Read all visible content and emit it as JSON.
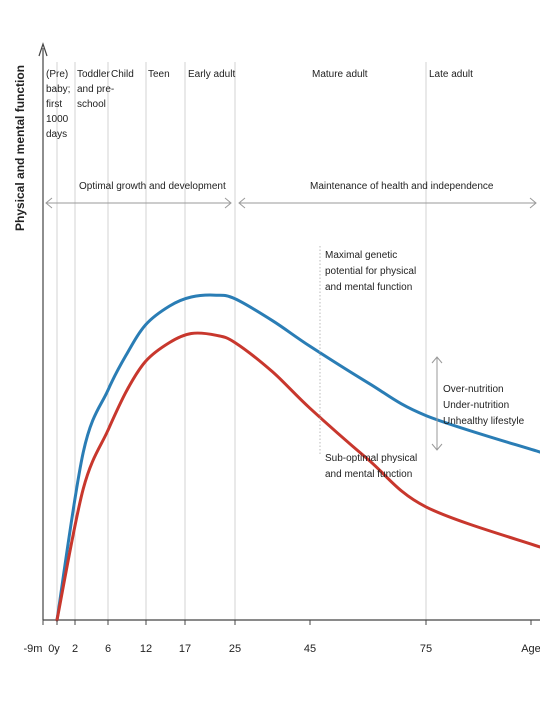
{
  "chart_data": {
    "type": "line",
    "ylabel": "Physical and mental function",
    "xlabel": "Age",
    "x_ticks": [
      "-9m",
      "0y",
      "2",
      "6",
      "12",
      "17",
      "25",
      "45",
      "75",
      "Age"
    ],
    "stages": [
      {
        "label": "(Pre) baby; first 1000 days",
        "lines": [
          "(Pre)",
          "baby;",
          "first",
          "1000",
          "days"
        ]
      },
      {
        "label": "Toddler and pre-school",
        "lines": [
          "Toddler",
          "and pre-",
          "school"
        ]
      },
      {
        "label": "Child",
        "lines": [
          "Child"
        ]
      },
      {
        "label": "Teen",
        "lines": [
          "Teen"
        ]
      },
      {
        "label": "Early adult",
        "lines": [
          "Early adult"
        ]
      },
      {
        "label": "Mature adult",
        "lines": [
          "Mature adult"
        ]
      },
      {
        "label": "Late adult",
        "lines": [
          "Late adult"
        ]
      }
    ],
    "phases": [
      "Optimal growth and development",
      "Maintenance of health and independence"
    ],
    "series": [
      {
        "name": "Maximal genetic potential for physical and mental function",
        "lines": [
          "Maximal genetic",
          "potential for physical",
          "and mental function"
        ],
        "color": "#2a7db5",
        "points": [
          [
            0,
            0
          ],
          [
            3,
            46
          ],
          [
            6,
            63
          ],
          [
            9,
            73
          ],
          [
            12,
            81
          ],
          [
            15,
            86
          ],
          [
            18,
            88.5
          ],
          [
            22,
            89
          ],
          [
            25,
            88
          ],
          [
            35,
            82
          ],
          [
            45,
            75
          ],
          [
            60,
            65
          ],
          [
            75,
            56
          ],
          [
            90,
            46
          ]
        ]
      },
      {
        "name": "Sub-optimal physical and mental function",
        "lines": [
          "Sub-optimal physical",
          "and mental function"
        ],
        "color": "#c8372d",
        "points": [
          [
            0,
            0
          ],
          [
            3,
            36
          ],
          [
            6,
            52
          ],
          [
            9,
            63
          ],
          [
            12,
            71
          ],
          [
            15,
            76
          ],
          [
            18,
            78.5
          ],
          [
            22,
            78
          ],
          [
            25,
            76
          ],
          [
            35,
            68
          ],
          [
            45,
            58
          ],
          [
            60,
            44
          ],
          [
            75,
            31
          ],
          [
            90,
            20
          ]
        ]
      }
    ],
    "gap_labels": [
      "Over-nutrition",
      "Under-nutrition",
      "Unhealthy lifestyle"
    ],
    "colors": {
      "axis": "#444444",
      "grid": "#c8c8c8",
      "arrow": "#999999",
      "text": "#222222"
    }
  }
}
